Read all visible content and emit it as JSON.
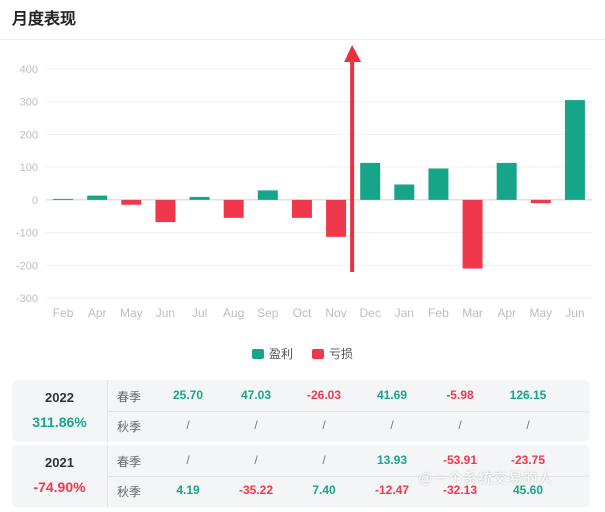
{
  "title": "月度表现",
  "chart_data": {
    "type": "bar",
    "categories": [
      "Feb",
      "Apr",
      "May",
      "Jun",
      "Jul",
      "Aug",
      "Sep",
      "Oct",
      "Nov",
      "Dec",
      "Jan",
      "Feb",
      "Mar",
      "Apr",
      "May",
      "Jun"
    ],
    "values": [
      3,
      13,
      -15,
      -68,
      9,
      -55,
      29,
      -55,
      -113,
      113,
      47,
      96,
      -210,
      113,
      -10,
      305
    ],
    "yticks": [
      400,
      300,
      200,
      100,
      0,
      -100,
      -200,
      -300
    ],
    "ylim": [
      -300,
      400
    ],
    "grid": true,
    "legend_position": "bottom-center",
    "colors": {
      "positive": "#17a589",
      "negative": "#f0384d"
    },
    "legend": [
      {
        "label": "盈利",
        "color": "#17a589"
      },
      {
        "label": "亏损",
        "color": "#f0384d"
      }
    ],
    "annotation": {
      "type": "red-arrow-up",
      "between": [
        "Nov",
        "Dec"
      ],
      "color": "#e8333d"
    }
  },
  "table": {
    "rows": [
      {
        "year": "2022",
        "total": "311.86%",
        "total_sign": "pos",
        "lines": [
          {
            "label": "春季",
            "cells": [
              "25.70",
              "47.03",
              "-26.03",
              "41.69",
              "-5.98",
              "126.15"
            ]
          },
          {
            "label": "秋季",
            "cells": [
              "/",
              "/",
              "/",
              "/",
              "/",
              "/"
            ]
          }
        ]
      },
      {
        "year": "2021",
        "total": "-74.90%",
        "total_sign": "neg",
        "lines": [
          {
            "label": "春季",
            "cells": [
              "/",
              "/",
              "/",
              "13.93",
              "-53.91",
              "-23.75"
            ]
          },
          {
            "label": "秋季",
            "cells": [
              "4.19",
              "-35.22",
              "7.40",
              "-12.47",
              "-32.13",
              "45.60"
            ]
          }
        ]
      }
    ]
  },
  "watermark": "@一个系统交易的人"
}
